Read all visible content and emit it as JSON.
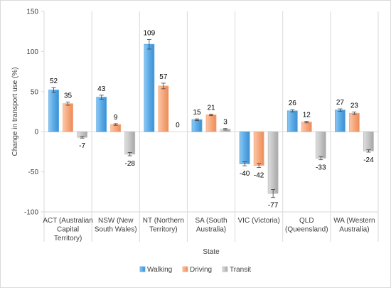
{
  "chart_data": {
    "type": "bar",
    "xlabel": "State",
    "ylabel": "Change in transport use (%)",
    "ylim": [
      -100,
      150
    ],
    "yticks": [
      -100,
      -50,
      0,
      50,
      100,
      150
    ],
    "grid": false,
    "legend_position": "bottom",
    "categories": [
      [
        "ACT (Australian",
        "Capital",
        "Territory)"
      ],
      [
        "NSW (New",
        "South Wales)"
      ],
      [
        "NT (Northern",
        "Territory)"
      ],
      [
        "SA (South",
        "Australia)"
      ],
      [
        "VIC (Victoria)"
      ],
      [
        "QLD",
        "(Queensland)"
      ],
      [
        "WA (Western",
        "Australia)"
      ]
    ],
    "series": [
      {
        "name": "Walking",
        "color": "#5aaae6",
        "values": [
          52,
          43,
          109,
          15,
          -40,
          26,
          27
        ],
        "errors": [
          3,
          2.5,
          6,
          1,
          2.5,
          1.5,
          1.5
        ]
      },
      {
        "name": "Driving",
        "color": "#f6a77c",
        "values": [
          35,
          9,
          57,
          21,
          -42,
          12,
          23
        ],
        "errors": [
          2,
          1,
          3.5,
          1,
          2.5,
          1,
          1.5
        ]
      },
      {
        "name": "Transit",
        "color": "#bfbfbf",
        "values": [
          -7,
          -28,
          0,
          3,
          -77,
          -33,
          -24
        ],
        "errors": [
          1,
          2,
          0,
          1,
          5,
          2,
          1.5
        ]
      }
    ]
  }
}
